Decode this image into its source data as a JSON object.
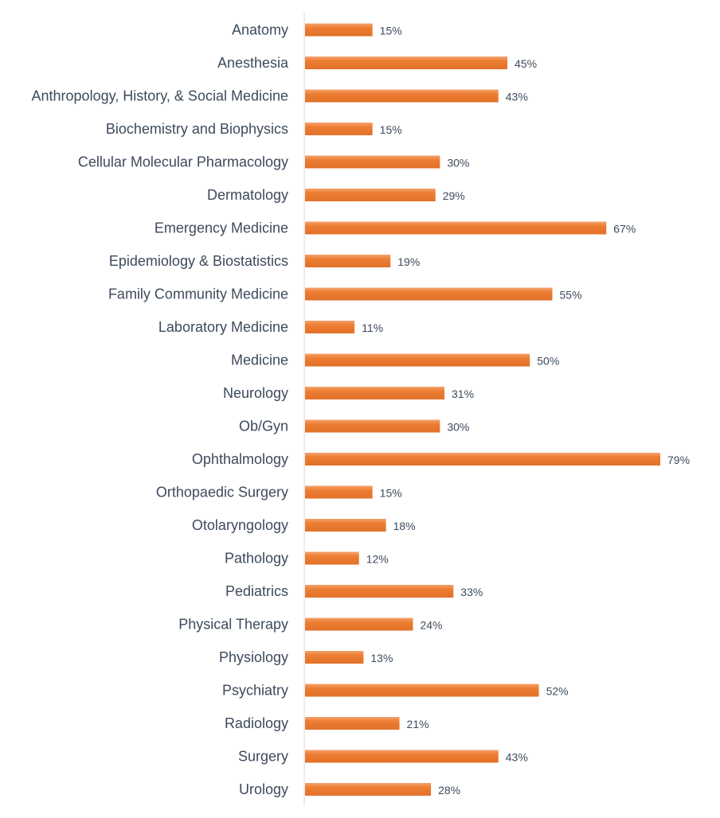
{
  "chart_data": {
    "type": "bar",
    "orientation": "horizontal",
    "categories": [
      "Anatomy",
      "Anesthesia",
      "Anthropology, History, & Social Medicine",
      "Biochemistry and Biophysics",
      "Cellular Molecular Pharmacology",
      "Dermatology",
      "Emergency Medicine",
      "Epidemiology & Biostatistics",
      "Family Community Medicine",
      "Laboratory Medicine",
      "Medicine",
      "Neurology",
      "Ob/Gyn",
      "Ophthalmology",
      "Orthopaedic Surgery",
      "Otolaryngology",
      "Pathology",
      "Pediatrics",
      "Physical Therapy",
      "Physiology",
      "Psychiatry",
      "Radiology",
      "Surgery",
      "Urology"
    ],
    "values": [
      15,
      45,
      43,
      15,
      30,
      29,
      67,
      19,
      55,
      11,
      50,
      31,
      30,
      79,
      15,
      18,
      12,
      33,
      24,
      13,
      52,
      21,
      43,
      28
    ],
    "value_labels": [
      "15%",
      "45%",
      "43%",
      "15%",
      "30%",
      "29%",
      "67%",
      "19%",
      "55%",
      "11%",
      "50%",
      "31%",
      "30%",
      "79%",
      "15%",
      "18%",
      "12%",
      "33%",
      "24%",
      "13%",
      "52%",
      "21%",
      "43%",
      "28%"
    ],
    "title": "",
    "xlabel": "",
    "ylabel": "",
    "xlim": [
      0,
      79
    ],
    "grid": false,
    "legend": "none",
    "colors": {
      "bar": "#ed7d31",
      "bar_top": "#f4a26d",
      "axis": "#d9d9d9",
      "text": "#3d4a5c"
    }
  }
}
